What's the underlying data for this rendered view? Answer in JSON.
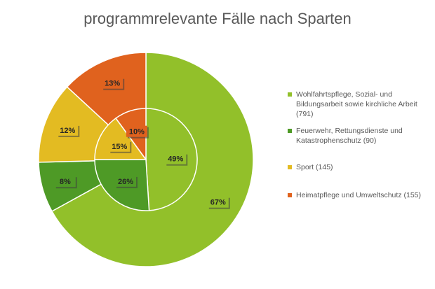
{
  "chart_data": {
    "type": "pie",
    "title": "programmrelevante Fälle nach Sparten",
    "categories": [
      "Wohlfahrtspflege, Sozial- und Bildungsarbeit sowie kirchliche Arbeit",
      "Feuerwehr, Rettungsdienste und Katastrophenschutz",
      "Sport",
      "Heimatpflege und Umweltschutz"
    ],
    "series": [
      {
        "name": "outer ring (Fälle)",
        "values": [
          791,
          90,
          145,
          155
        ],
        "labels": [
          "67%",
          "8%",
          "12%",
          "13%"
        ]
      },
      {
        "name": "inner pie",
        "values": [
          49,
          26,
          15,
          10
        ],
        "labels": [
          "49%",
          "26%",
          "15%",
          "10%"
        ]
      }
    ],
    "legend": {
      "position": "right",
      "items": [
        {
          "label": "Wohlfahrtspflege, Sozial- und Bildungsarbeit sowie kirchliche Arbeit (791)",
          "color": "#92C02A"
        },
        {
          "label": "Feuerwehr, Rettungsdienste und Katastrophenschutz (90)",
          "color": "#4E9A26"
        },
        {
          "label": "Sport (145)",
          "color": "#E3BB22"
        },
        {
          "label": "Heimatpflege und Umweltschutz (155)",
          "color": "#E0621E"
        }
      ]
    }
  }
}
